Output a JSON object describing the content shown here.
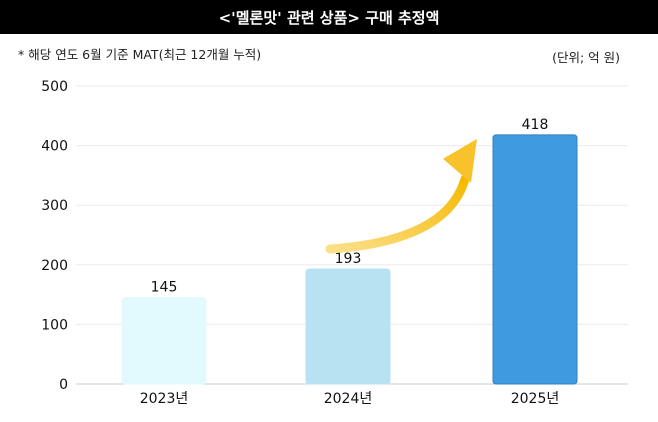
{
  "chart_data": {
    "type": "bar",
    "title": "<'멜론맛' 관련 상품> 구매 추정액",
    "subtitle": "* 해당 연도 6월 기준 MAT(최근 12개월 누적)",
    "unit_note": "(단위; 억 원)",
    "categories": [
      "2023년",
      "2024년",
      "2025년"
    ],
    "values": [
      145,
      193,
      418
    ],
    "ylim": [
      0,
      500
    ],
    "yticks": [
      0,
      100,
      200,
      300,
      400,
      500
    ],
    "grid": true,
    "xlabel": "",
    "ylabel": "",
    "bar_colors": [
      "#e2f9fd",
      "#b8e2f2",
      "#3f9ae0"
    ],
    "bar_edge_colors": [
      "#e2f9fd",
      "#b8e2f2",
      "#2f82c6"
    ],
    "arrow_color": "#f8c22c",
    "arrow": {
      "from": "2024년",
      "to": "2025년"
    }
  }
}
